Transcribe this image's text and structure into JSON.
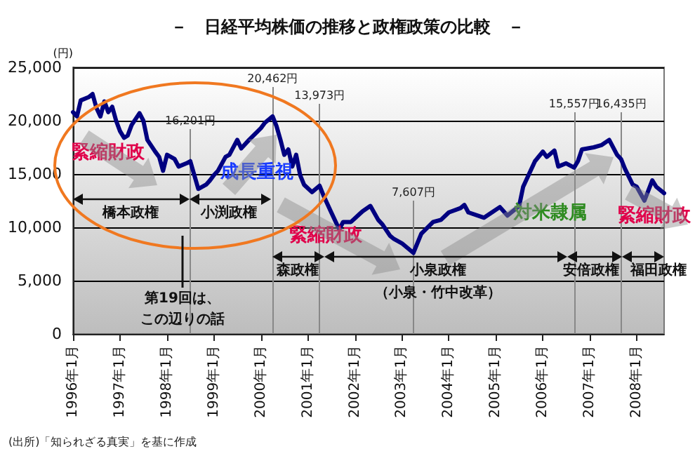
{
  "chart_data": {
    "type": "line",
    "title": "－　日経平均株価の推移と政権政策の比較　－",
    "ylabel": "(円)",
    "x": [
      "1996-01",
      "1996-02",
      "1996-03",
      "1996-05",
      "1996-06",
      "1996-07",
      "1996-08",
      "1996-09",
      "1996-10",
      "1996-11",
      "1996-12",
      "1997-01",
      "1997-02",
      "1997-03",
      "1997-04",
      "1997-06",
      "1997-07",
      "1997-08",
      "1997-10",
      "1997-11",
      "1997-12",
      "1998-01",
      "1998-03",
      "1998-04",
      "1998-06",
      "1998-07",
      "1998-08",
      "1998-09",
      "1998-11",
      "1998-12",
      "1999-01",
      "1999-02",
      "1999-04",
      "1999-05",
      "1999-07",
      "1999-08",
      "1999-10",
      "2000-01",
      "2000-02",
      "2000-04",
      "2000-05",
      "2000-06",
      "2000-07",
      "2000-08",
      "2000-09",
      "2000-10",
      "2000-11",
      "2000-12",
      "2001-02",
      "2001-04",
      "2001-05",
      "2001-07",
      "2001-09",
      "2001-10",
      "2001-12",
      "2002-03",
      "2002-05",
      "2002-07",
      "2002-08",
      "2002-10",
      "2002-11",
      "2003-01",
      "2003-04",
      "2003-06",
      "2003-09",
      "2003-11",
      "2004-01",
      "2004-04",
      "2004-05",
      "2004-06",
      "2004-10",
      "2004-12",
      "2005-02",
      "2005-04",
      "2005-07",
      "2005-08",
      "2005-11",
      "2006-01",
      "2006-02",
      "2006-04",
      "2006-05",
      "2006-07",
      "2006-09",
      "2006-10",
      "2006-11",
      "2007-02",
      "2007-04",
      "2007-06",
      "2007-08",
      "2007-09",
      "2007-10",
      "2007-12",
      "2008-01",
      "2008-03",
      "2008-05",
      "2008-06",
      "2008-08"
    ],
    "series": [
      {
        "color": "#000080",
        "values": [
          20800,
          20400,
          21900,
          22200,
          22500,
          21200,
          20400,
          21800,
          20800,
          21300,
          20000,
          19000,
          18400,
          18600,
          19600,
          20700,
          20000,
          18200,
          17100,
          16600,
          15300,
          16800,
          16400,
          15700,
          16000,
          16200,
          14900,
          13600,
          14000,
          14400,
          14900,
          15300,
          16600,
          16800,
          18200,
          17400,
          18200,
          19300,
          19800,
          20400,
          19500,
          18200,
          16800,
          17300,
          15700,
          16800,
          14900,
          14000,
          13300,
          13900,
          13000,
          11400,
          9800,
          10500,
          10500,
          11500,
          12000,
          10700,
          10300,
          9200,
          8900,
          8500,
          7600,
          9400,
          10500,
          10700,
          11400,
          11800,
          12100,
          11400,
          10900,
          11400,
          11900,
          11100,
          12000,
          13800,
          16200,
          17100,
          16600,
          17200,
          15700,
          16000,
          15600,
          16200,
          17300,
          17500,
          17700,
          18200,
          16800,
          16400,
          15500,
          14000,
          13800,
          12500,
          14400,
          13800,
          13200
        ]
      }
    ],
    "xlim": [
      "1996-01",
      "2008-08"
    ],
    "xticks": [
      {
        "value": "1996-01",
        "label": "1996年1月"
      },
      {
        "value": "1997-01",
        "label": "1997年1月"
      },
      {
        "value": "1998-01",
        "label": "1998年1月"
      },
      {
        "value": "1999-01",
        "label": "1999年1月"
      },
      {
        "value": "2000-01",
        "label": "2000年1月"
      },
      {
        "value": "2001-01",
        "label": "2001年1月"
      },
      {
        "value": "2002-01",
        "label": "2002年1月"
      },
      {
        "value": "2003-01",
        "label": "2003年1月"
      },
      {
        "value": "2004-01",
        "label": "2004年1月"
      },
      {
        "value": "2005-01",
        "label": "2005年1月"
      },
      {
        "value": "2006-01",
        "label": "2006年1月"
      },
      {
        "value": "2007-01",
        "label": "2007年1月"
      },
      {
        "value": "2008-01",
        "label": "2008年1月"
      }
    ],
    "ylim": [
      0,
      25000
    ],
    "yticks": [
      {
        "value": 0,
        "label": "0"
      },
      {
        "value": 5000,
        "label": "5,000"
      },
      {
        "value": 10000,
        "label": "10,000"
      },
      {
        "value": 15000,
        "label": "15,000"
      },
      {
        "value": 20000,
        "label": "20,000"
      },
      {
        "value": 25000,
        "label": "25,000"
      }
    ],
    "grid": "y",
    "marker": "none",
    "line_style": "solid",
    "ref_lines": [
      {
        "axis": "x",
        "value": "1998-07",
        "label": "16,201円"
      },
      {
        "axis": "x",
        "value": "2000-04",
        "label": "20,462円"
      },
      {
        "axis": "x",
        "value": "2001-04",
        "label": "13,973円"
      },
      {
        "axis": "x",
        "value": "2003-04",
        "label": "7,607円"
      },
      {
        "axis": "x",
        "value": "2006-09",
        "label": "15,557円"
      },
      {
        "axis": "x",
        "value": "2007-09",
        "label": "16,435円"
      }
    ],
    "annotations": [
      "緊縮財政",
      "成長重視",
      "緊縮財政",
      "対米隷属",
      "緊縮財政",
      "（小泉・竹中改革）",
      "第19回は、",
      "この辺りの話",
      "橋本政権",
      "小渕政権",
      "森政権",
      "小泉政権",
      "安倍政権",
      "福田政権",
      "(出所)「知られざる真実」を基に作成"
    ]
  }
}
